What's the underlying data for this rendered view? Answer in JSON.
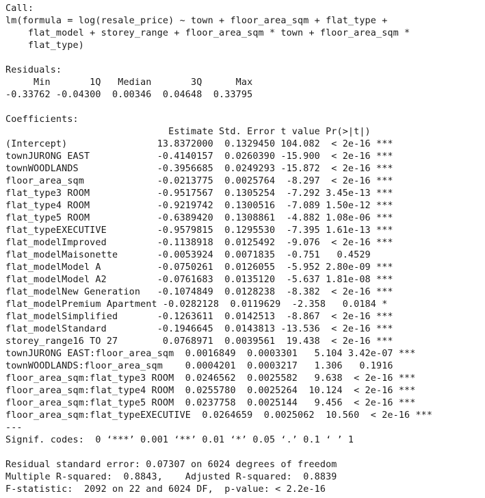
{
  "console": {
    "lines": [
      "Call:",
      "lm(formula = log(resale_price) ~ town + floor_area_sqm + flat_type +",
      "    flat_model + storey_range + floor_area_sqm * town + floor_area_sqm *",
      "    flat_type)",
      "",
      "Residuals:",
      "     Min       1Q   Median       3Q      Max ",
      "-0.33762 -0.04300  0.00346  0.04648  0.33795 ",
      "",
      "Coefficients:",
      "                             Estimate Std. Error t value Pr(>|t|)    ",
      "(Intercept)                13.8372000  0.1329450 104.082  < 2e-16 ***",
      "townJURONG EAST            -0.4140157  0.0260390 -15.900  < 2e-16 ***",
      "townWOODLANDS              -0.3956685  0.0249293 -15.872  < 2e-16 ***",
      "floor_area_sqm             -0.0213775  0.0025764  -8.297  < 2e-16 ***",
      "flat_type3 ROOM            -0.9517567  0.1305254  -7.292 3.45e-13 ***",
      "flat_type4 ROOM            -0.9219742  0.1300516  -7.089 1.50e-12 ***",
      "flat_type5 ROOM            -0.6389420  0.1308861  -4.882 1.08e-06 ***",
      "flat_typeEXECUTIVE         -0.9579815  0.1295530  -7.395 1.61e-13 ***",
      "flat_modelImproved         -0.1138918  0.0125492  -9.076  < 2e-16 ***",
      "flat_modelMaisonette       -0.0053924  0.0071835  -0.751   0.4529    ",
      "flat_modelModel A          -0.0750261  0.0126055  -5.952 2.80e-09 ***",
      "flat_modelModel A2         -0.0761683  0.0135120  -5.637 1.81e-08 ***",
      "flat_modelNew Generation   -0.1074849  0.0128238  -8.382  < 2e-16 ***",
      "flat_modelPremium Apartment -0.0282128  0.0119629  -2.358   0.0184 *  ",
      "flat_modelSimplified       -0.1263611  0.0142513  -8.867  < 2e-16 ***",
      "flat_modelStandard         -0.1946645  0.0143813 -13.536  < 2e-16 ***",
      "storey_range16 TO 27        0.0768971  0.0039561  19.438  < 2e-16 ***",
      "townJURONG EAST:floor_area_sqm  0.0016849  0.0003301   5.104 3.42e-07 ***",
      "townWOODLANDS:floor_area_sqm    0.0004201  0.0003217   1.306   0.1916    ",
      "floor_area_sqm:flat_type3 ROOM  0.0246562  0.0025582   9.638  < 2e-16 ***",
      "floor_area_sqm:flat_type4 ROOM  0.0255780  0.0025264  10.124  < 2e-16 ***",
      "floor_area_sqm:flat_type5 ROOM  0.0237758  0.0025144   9.456  < 2e-16 ***",
      "floor_area_sqm:flat_typeEXECUTIVE  0.0264659  0.0025062  10.560  < 2e-16 ***",
      "---",
      "Signif. codes:  0 ‘***’ 0.001 ‘**’ 0.01 ‘*’ 0.05 ‘.’ 0.1 ‘ ’ 1",
      "",
      "Residual standard error: 0.07307 on 6024 degrees of freedom",
      "Multiple R-squared:  0.8843,\tAdjusted R-squared:  0.8839 ",
      "F-statistic:  2092 on 22 and 6024 DF,  p-value: < 2.2e-16"
    ]
  }
}
